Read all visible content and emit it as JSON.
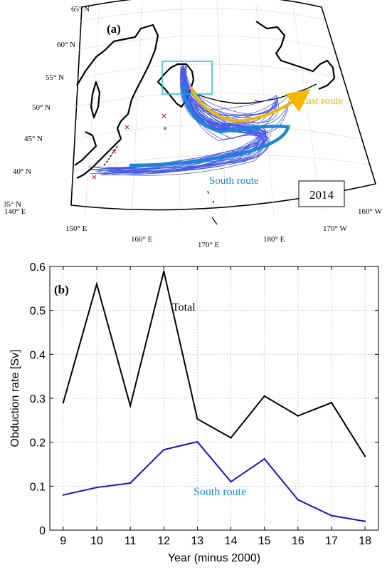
{
  "panel_a": {
    "label": "(a)",
    "year_box": "2014",
    "east_route_label": "East route",
    "south_route_label": "South route",
    "lat_labels": [
      "65° N",
      "60° N",
      "55° N",
      "50° N",
      "45° N",
      "40° N",
      "35° N"
    ],
    "lon_labels": [
      "140° E",
      "150° E",
      "160° E",
      "170° E",
      "180° E",
      "170° W",
      "160° W"
    ],
    "colors": {
      "east_route": "#f5b800",
      "south_route": "#1a86d6",
      "box": "#26c6d0",
      "tracks": "#2a3fe0"
    }
  },
  "chart_data": {
    "type": "line",
    "panel_label": "(b)",
    "x": [
      9,
      10,
      11,
      12,
      13,
      14,
      15,
      16,
      17,
      18
    ],
    "series": [
      {
        "name": "Total",
        "values": [
          0.29,
          0.56,
          0.283,
          0.589,
          0.253,
          0.21,
          0.305,
          0.26,
          0.29,
          0.168
        ],
        "color": "#000000"
      },
      {
        "name": "South route",
        "values": [
          0.08,
          0.097,
          0.107,
          0.183,
          0.201,
          0.11,
          0.162,
          0.069,
          0.033,
          0.02
        ],
        "color": "#1414c8"
      }
    ],
    "xlabel": "Year (minus 2000)",
    "ylabel": "Obduction rate [Sv]",
    "xlim": [
      8.6,
      18.4
    ],
    "ylim": [
      0,
      0.6
    ],
    "xticks": [
      "9",
      "10",
      "11",
      "12",
      "13",
      "14",
      "15",
      "16",
      "17",
      "18"
    ],
    "yticks": [
      "0",
      "0.1",
      "0.2",
      "0.3",
      "0.4",
      "0.5",
      "0.6"
    ],
    "grid": true
  }
}
